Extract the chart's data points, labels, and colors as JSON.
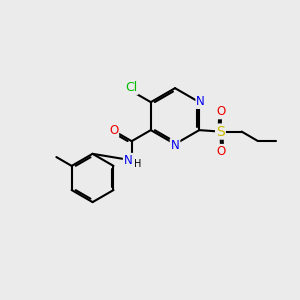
{
  "bg_color": "#ebebeb",
  "atom_colors": {
    "C": "#000000",
    "N": "#0000ee",
    "O": "#ee0000",
    "S": "#ccbb00",
    "Cl": "#00bb00",
    "H": "#000000"
  },
  "bond_color": "#000000",
  "font_size": 8.5,
  "fig_size": [
    3.0,
    3.0
  ],
  "dpi": 100
}
